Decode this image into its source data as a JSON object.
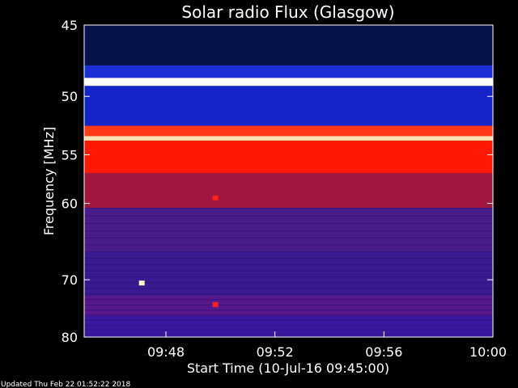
{
  "chart_data": {
    "type": "heatmap",
    "title": "Solar radio Flux (Glasgow)",
    "xlabel": "Start Time (10-Jul-16 09:45:00)",
    "ylabel": "Frequency [MHz]",
    "x_ticks": [
      "09:48",
      "09:52",
      "09:56",
      "10:00"
    ],
    "x_tick_minutes": [
      48,
      52,
      56,
      60
    ],
    "xlim_minutes": [
      45,
      60
    ],
    "y_ticks": [
      45,
      50,
      55,
      60,
      70,
      80
    ],
    "ylim": [
      45,
      80
    ],
    "y_scale": "reciprocal",
    "bands": [
      {
        "from": 45.0,
        "to": 47.7,
        "color": "#06124a"
      },
      {
        "from": 47.7,
        "to": 48.6,
        "color": "#1a2fd8"
      },
      {
        "from": 48.6,
        "to": 49.2,
        "color": "#ffffff"
      },
      {
        "from": 49.2,
        "to": 52.4,
        "color": "#1424c8"
      },
      {
        "from": 52.4,
        "to": 53.3,
        "color": "#ff3a1a"
      },
      {
        "from": 53.3,
        "to": 53.7,
        "color": "#ffe0b0"
      },
      {
        "from": 53.7,
        "to": 56.8,
        "color": "#ff1a08"
      },
      {
        "from": 56.8,
        "to": 60.5,
        "color": "#a01840"
      },
      {
        "from": 60.5,
        "to": 66.0,
        "color": "#4a1c8a"
      },
      {
        "from": 66.0,
        "to": 72.5,
        "color": "#3a1a90"
      },
      {
        "from": 72.5,
        "to": 76.0,
        "color": "#56188a"
      },
      {
        "from": 76.0,
        "to": 80.0,
        "color": "#3a18a0"
      }
    ],
    "bright_spots": [
      {
        "time_minute": 47.1,
        "frequency": 70.5,
        "color": "#ffffd0"
      },
      {
        "time_minute": 49.8,
        "frequency": 59.4,
        "color": "#ff2020"
      },
      {
        "time_minute": 49.8,
        "frequency": 74.0,
        "color": "#ff2020"
      }
    ]
  },
  "footer": {
    "updated": "Updated Thu Feb 22 01:52:22 2018"
  }
}
